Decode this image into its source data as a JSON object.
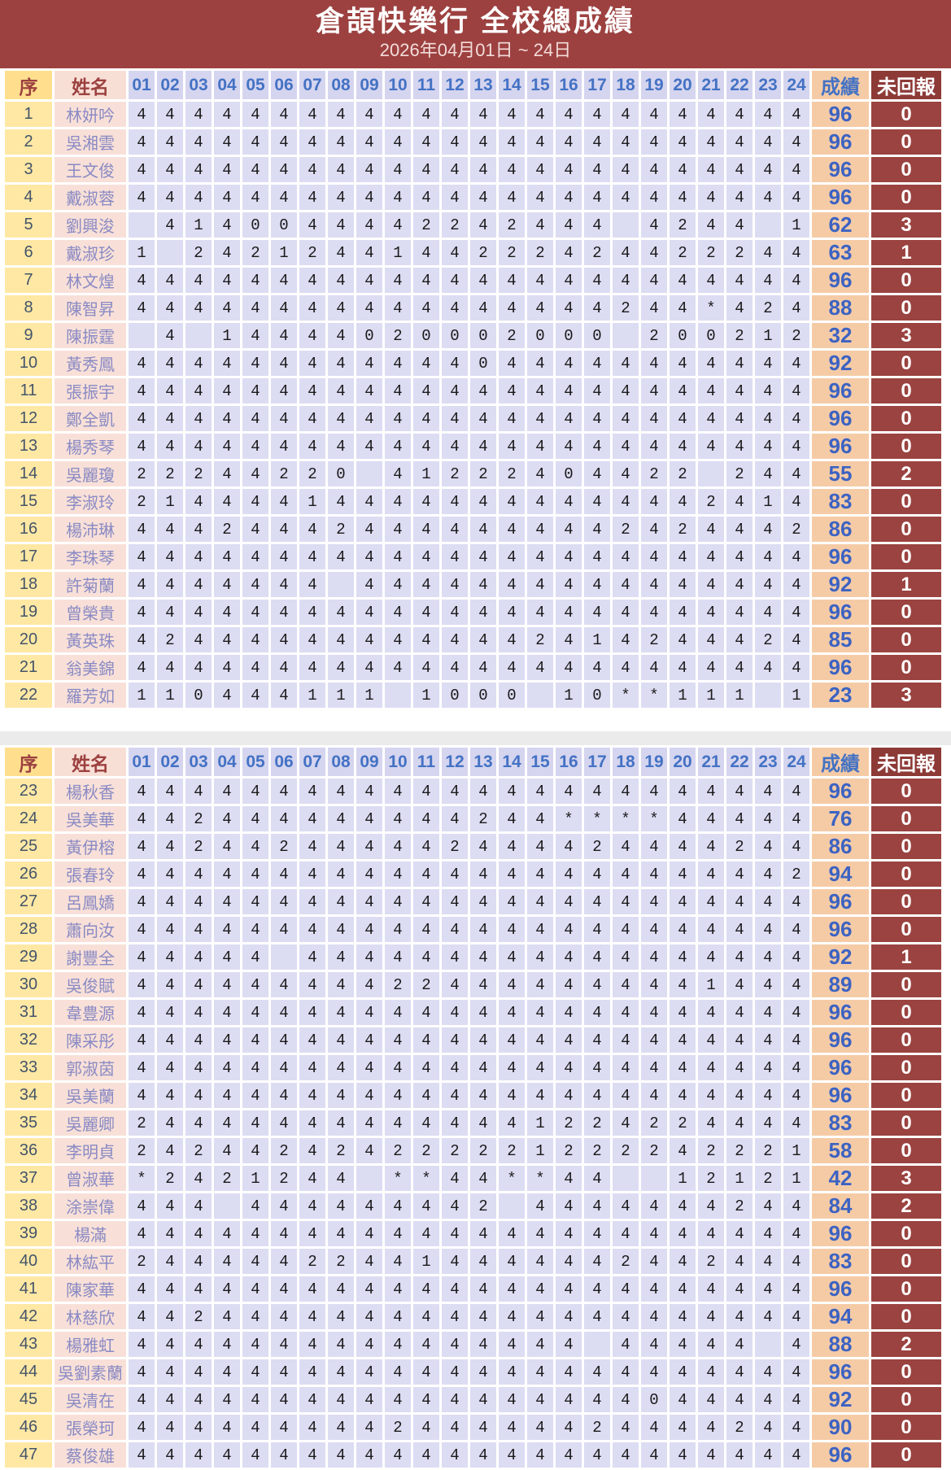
{
  "header": {
    "title": "倉頡快樂行  全校總成績",
    "subtitle": "2026年04月01日 ~ 24日"
  },
  "columns": {
    "index": "序",
    "name": "姓名",
    "days": [
      "01",
      "02",
      "03",
      "04",
      "05",
      "06",
      "07",
      "08",
      "09",
      "10",
      "11",
      "12",
      "13",
      "14",
      "15",
      "16",
      "17",
      "18",
      "19",
      "20",
      "21",
      "22",
      "23",
      "24"
    ],
    "score": "成績",
    "unreported": "未回報"
  },
  "legend": {
    "blank_char": " ",
    "asterisk_char": "*"
  },
  "tables": [
    {
      "rows": [
        {
          "no": "1",
          "name": "林妍吟",
          "days": "444444444444444444444444",
          "score": "96",
          "unreported": "0"
        },
        {
          "no": "2",
          "name": "吳湘雲",
          "days": "444444444444444444444444",
          "score": "96",
          "unreported": "0"
        },
        {
          "no": "3",
          "name": "王文俊",
          "days": "444444444444444444444444",
          "score": "96",
          "unreported": "0"
        },
        {
          "no": "4",
          "name": "戴淑蓉",
          "days": "444444444444444444444444",
          "score": "96",
          "unreported": "0"
        },
        {
          "no": "5",
          "name": "劉興浚",
          "days": " 4140044442242444 4244 1",
          "score": "62",
          "unreported": "3"
        },
        {
          "no": "6",
          "name": "戴淑珍",
          "days": "1 2421244144222424422244",
          "score": "63",
          "unreported": "1"
        },
        {
          "no": "7",
          "name": "林文煌",
          "days": "444444444444444444444444",
          "score": "96",
          "unreported": "0"
        },
        {
          "no": "8",
          "name": "陳智昇",
          "days": "44444444444444444244*424",
          "score": "88",
          "unreported": "0"
        },
        {
          "no": "9",
          "name": "陳振霆",
          "days": " 4 14444020002000 200212",
          "score": "32",
          "unreported": "3"
        },
        {
          "no": "10",
          "name": "黃秀鳳",
          "days": "444444444444044444444444",
          "score": "92",
          "unreported": "0"
        },
        {
          "no": "11",
          "name": "張振宇",
          "days": "444444444444444444444444",
          "score": "96",
          "unreported": "0"
        },
        {
          "no": "12",
          "name": "鄭全凱",
          "days": "444444444444444444444444",
          "score": "96",
          "unreported": "0"
        },
        {
          "no": "13",
          "name": "楊秀琴",
          "days": "444444444444444444444444",
          "score": "96",
          "unreported": "0"
        },
        {
          "no": "14",
          "name": "吳麗瓊",
          "days": "22244220 41222404422 244",
          "score": "55",
          "unreported": "2"
        },
        {
          "no": "15",
          "name": "李淑玲",
          "days": "214444144444444444442414",
          "score": "83",
          "unreported": "0"
        },
        {
          "no": "16",
          "name": "楊沛琳",
          "days": "444244424444444442424442",
          "score": "86",
          "unreported": "0"
        },
        {
          "no": "17",
          "name": "李珠琴",
          "days": "444444444444444444444444",
          "score": "96",
          "unreported": "0"
        },
        {
          "no": "18",
          "name": "許菊蘭",
          "days": "4444444 4444444444444444",
          "score": "92",
          "unreported": "1"
        },
        {
          "no": "19",
          "name": "曾榮貴",
          "days": "444444444444444444444444",
          "score": "96",
          "unreported": "0"
        },
        {
          "no": "20",
          "name": "黃英珠",
          "days": "424444444444442414244424",
          "score": "85",
          "unreported": "0"
        },
        {
          "no": "21",
          "name": "翁美錦",
          "days": "444444444444444444444444",
          "score": "96",
          "unreported": "0"
        },
        {
          "no": "22",
          "name": "羅芳如",
          "days": "110444111 1000 10**111 1",
          "score": "23",
          "unreported": "3"
        }
      ]
    },
    {
      "rows": [
        {
          "no": "23",
          "name": "楊秋香",
          "days": "444444444444444444444444",
          "score": "96",
          "unreported": "0"
        },
        {
          "no": "24",
          "name": "吳美華",
          "days": "442444444444244****44444",
          "score": "76",
          "unreported": "0"
        },
        {
          "no": "25",
          "name": "黃伊榕",
          "days": "442442444442444424444244",
          "score": "86",
          "unreported": "0"
        },
        {
          "no": "26",
          "name": "張春玲",
          "days": "444444444444444444444442",
          "score": "94",
          "unreported": "0"
        },
        {
          "no": "27",
          "name": "呂鳳嬌",
          "days": "444444444444444444444444",
          "score": "96",
          "unreported": "0"
        },
        {
          "no": "28",
          "name": "蕭向汝",
          "days": "444444444444444444444444",
          "score": "96",
          "unreported": "0"
        },
        {
          "no": "29",
          "name": "謝豐全",
          "days": "44444 444444444444444444",
          "score": "92",
          "unreported": "1"
        },
        {
          "no": "30",
          "name": "吳俊賦",
          "days": "444444444224444444441444",
          "score": "89",
          "unreported": "0"
        },
        {
          "no": "31",
          "name": "韋豊源",
          "days": "444444444444444444444444",
          "score": "96",
          "unreported": "0"
        },
        {
          "no": "32",
          "name": "陳采彤",
          "days": "444444444444444444444444",
          "score": "96",
          "unreported": "0"
        },
        {
          "no": "33",
          "name": "郭淑茵",
          "days": "444444444444444444444444",
          "score": "96",
          "unreported": "0"
        },
        {
          "no": "34",
          "name": "吳美蘭",
          "days": "444444444444444444444444",
          "score": "96",
          "unreported": "0"
        },
        {
          "no": "35",
          "name": "吳麗卿",
          "days": "244444444444441224224444",
          "score": "83",
          "unreported": "0"
        },
        {
          "no": "36",
          "name": "李明貞",
          "days": "242442424222221222242221",
          "score": "58",
          "unreported": "0"
        },
        {
          "no": "37",
          "name": "曾淑華",
          "days": "*2421244 **44**44  12121",
          "score": "42",
          "unreported": "3"
        },
        {
          "no": "38",
          "name": "涂崇偉",
          "days": "444 444444442 4444444244",
          "score": "84",
          "unreported": "2"
        },
        {
          "no": "39",
          "name": "楊滿",
          "days": "444444444444444444444444",
          "score": "96",
          "unreported": "0"
        },
        {
          "no": "40",
          "name": "林紘平",
          "days": "244444224414444442442444",
          "score": "83",
          "unreported": "0"
        },
        {
          "no": "41",
          "name": "陳家華",
          "days": "444444444444444444444444",
          "score": "96",
          "unreported": "0"
        },
        {
          "no": "42",
          "name": "林慈欣",
          "days": "442444444444444444444444",
          "score": "94",
          "unreported": "0"
        },
        {
          "no": "43",
          "name": "楊雅虹",
          "days": "4444444444444444 44444 4",
          "score": "88",
          "unreported": "2"
        },
        {
          "no": "44",
          "name": "吳劉素蘭",
          "days": "444444444444444444444444",
          "score": "96",
          "unreported": "0"
        },
        {
          "no": "45",
          "name": "吳清在",
          "days": "444444444444444444044444",
          "score": "92",
          "unreported": "0"
        },
        {
          "no": "46",
          "name": "張榮珂",
          "days": "444444444244444424444244",
          "score": "90",
          "unreported": "0"
        },
        {
          "no": "47",
          "name": "蔡俊雄",
          "days": "444444444444444444444444",
          "score": "96",
          "unreported": "0"
        }
      ]
    }
  ],
  "colors": {
    "maroon_title": "#9C4140",
    "maroon_header": "#8D3A37",
    "maroon_cell": "#9A4340",
    "yellow_header": "#FFDF8E",
    "yellow_cell": "#FFE8A4",
    "pink_name": "#F8E0D8",
    "lavender_header": "#D5D5EF",
    "lavender_cell": "#DCDCF3",
    "peach_score": "#F5CBA6",
    "blue_header_text": "#4472C4",
    "blue_score_text": "#3D63C2"
  }
}
